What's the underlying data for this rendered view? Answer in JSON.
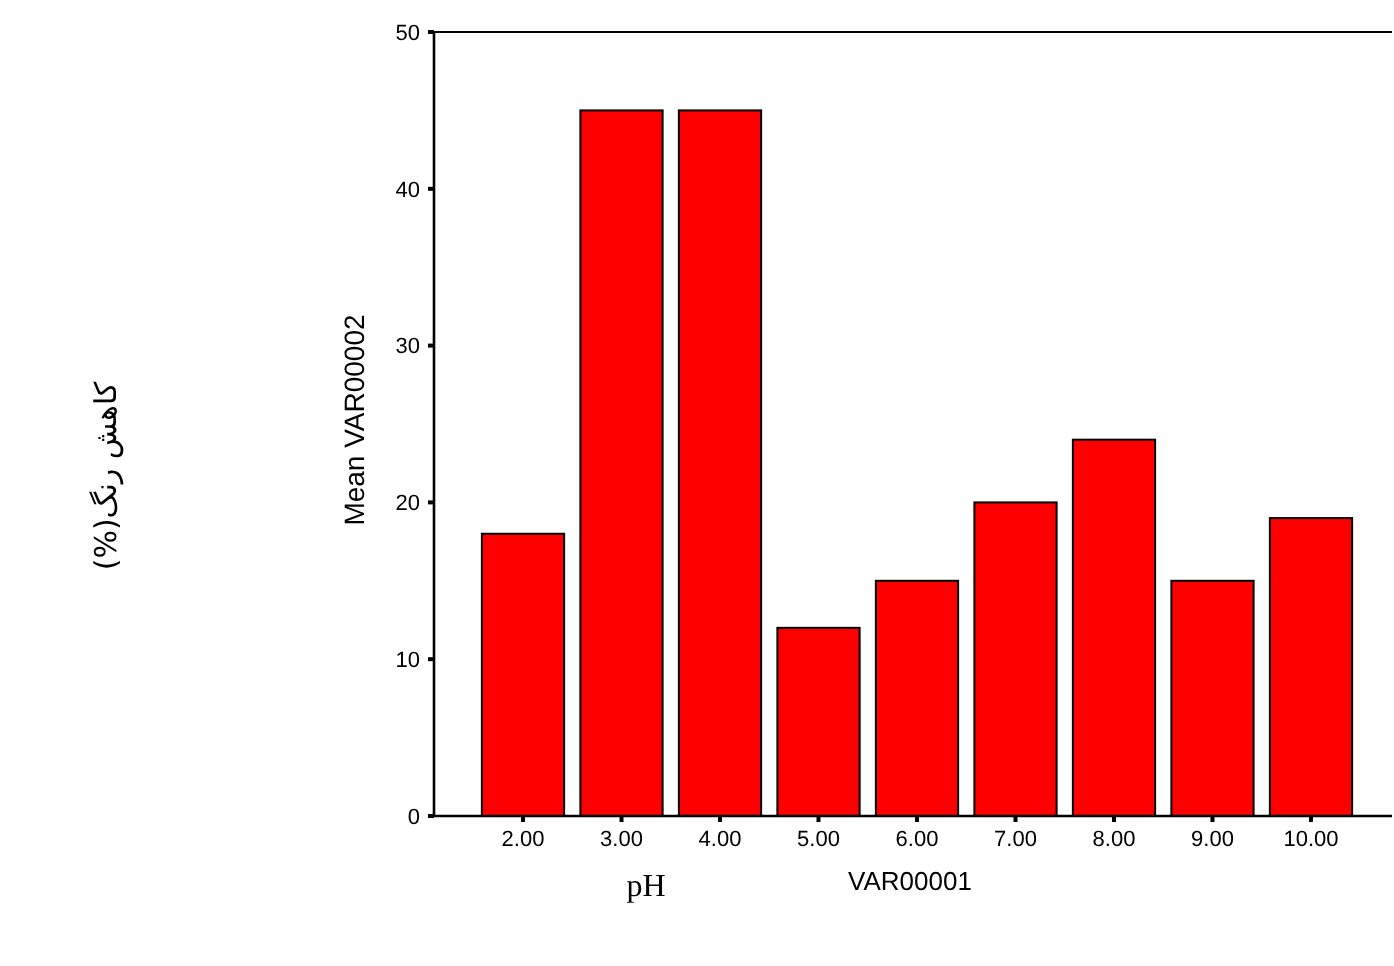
{
  "chart_data": {
    "type": "bar",
    "xlabel": "VAR00001",
    "ylabel": "Mean VAR00002",
    "annotations": [
      "کاهش رنگ(%)",
      "pH"
    ],
    "categories": [
      "2.00",
      "3.00",
      "4.00",
      "5.00",
      "6.00",
      "7.00",
      "8.00",
      "9.00",
      "10.00"
    ],
    "values": [
      18,
      45,
      45,
      12,
      15,
      20,
      24,
      15,
      19
    ],
    "color": "#ff0000",
    "ylim": [
      0,
      50
    ],
    "yticks": [
      0,
      10,
      20,
      30,
      40,
      50
    ],
    "grid": false
  }
}
